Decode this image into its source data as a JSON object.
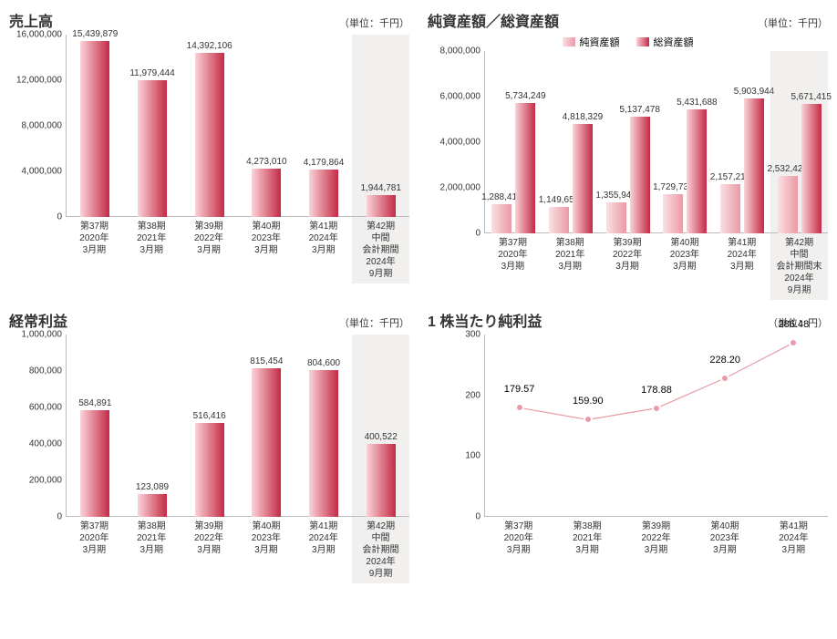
{
  "sales": {
    "title": "売上高",
    "unit": "（単位：千円）",
    "type": "bar",
    "ylim": [
      0,
      16000000
    ],
    "yticks": [
      0,
      4000000,
      8000000,
      12000000,
      16000000
    ],
    "ytick_labels": [
      "0",
      "4,000,000",
      "8,000,000",
      "12,000,000",
      "16,000,000"
    ],
    "bar_gradient": [
      "#fbd3d8",
      "#c42a45"
    ],
    "shaded_bg": "rgba(200,195,190,0.25)",
    "categories": [
      {
        "lines": [
          "第37期",
          "2020年",
          "3月期"
        ]
      },
      {
        "lines": [
          "第38期",
          "2021年",
          "3月期"
        ]
      },
      {
        "lines": [
          "第39期",
          "2022年",
          "3月期"
        ]
      },
      {
        "lines": [
          "第40期",
          "2023年",
          "3月期"
        ]
      },
      {
        "lines": [
          "第41期",
          "2024年",
          "3月期"
        ]
      },
      {
        "lines": [
          "第42期",
          "中間",
          "会計期間",
          "2024年",
          "9月期"
        ],
        "shaded": true
      }
    ],
    "values": [
      15439879,
      11979444,
      14392106,
      4273010,
      4179864,
      1944781
    ],
    "value_labels": [
      "15,439,879",
      "11,979,444",
      "14,392,106",
      "4,273,010",
      "4,179,864",
      "1,944,781"
    ]
  },
  "assets": {
    "title": "純資産額／総資産額",
    "unit": "（単位：千円）",
    "type": "grouped-bar",
    "ylim": [
      0,
      8000000
    ],
    "yticks": [
      0,
      2000000,
      4000000,
      6000000,
      8000000
    ],
    "ytick_labels": [
      "0",
      "2,000,000",
      "4,000,000",
      "6,000,000",
      "8,000,000"
    ],
    "legend": [
      {
        "label": "純資産額",
        "color_gradient": [
          "#fbe0e3",
          "#e99aa6"
        ]
      },
      {
        "label": "総資産額",
        "color_gradient": [
          "#fbd3d8",
          "#c42a45"
        ]
      }
    ],
    "categories": [
      {
        "lines": [
          "第37期",
          "2020年",
          "3月期"
        ]
      },
      {
        "lines": [
          "第38期",
          "2021年",
          "3月期"
        ]
      },
      {
        "lines": [
          "第39期",
          "2022年",
          "3月期"
        ]
      },
      {
        "lines": [
          "第40期",
          "2023年",
          "3月期"
        ]
      },
      {
        "lines": [
          "第41期",
          "2024年",
          "3月期"
        ]
      },
      {
        "lines": [
          "第42期",
          "中間",
          "会計期間末",
          "2024年",
          "9月期"
        ],
        "shaded": true
      }
    ],
    "series": [
      {
        "name": "net",
        "values": [
          1288417,
          1149656,
          1355946,
          1729736,
          2157214,
          2532429
        ],
        "value_labels": [
          "1,288,417",
          "1,149,656",
          "1,355,946",
          "1,729,736",
          "2,157,214",
          "2,532,429"
        ],
        "gradient": [
          "#fbe0e3",
          "#e99aa6"
        ]
      },
      {
        "name": "total",
        "values": [
          5734249,
          4818329,
          5137478,
          5431688,
          5903944,
          5671415
        ],
        "value_labels": [
          "5,734,249",
          "4,818,329",
          "5,137,478",
          "5,431,688",
          "5,903,944",
          "5,671,415"
        ],
        "gradient": [
          "#fbd3d8",
          "#c42a45"
        ]
      }
    ]
  },
  "ordinary": {
    "title": "経常利益",
    "unit": "（単位：千円）",
    "type": "bar",
    "ylim": [
      0,
      1000000
    ],
    "yticks": [
      0,
      200000,
      400000,
      600000,
      800000,
      1000000
    ],
    "ytick_labels": [
      "0",
      "200,000",
      "400,000",
      "600,000",
      "800,000",
      "1,000,000"
    ],
    "bar_gradient": [
      "#fbd3d8",
      "#c42a45"
    ],
    "categories": [
      {
        "lines": [
          "第37期",
          "2020年",
          "3月期"
        ]
      },
      {
        "lines": [
          "第38期",
          "2021年",
          "3月期"
        ]
      },
      {
        "lines": [
          "第39期",
          "2022年",
          "3月期"
        ]
      },
      {
        "lines": [
          "第40期",
          "2023年",
          "3月期"
        ]
      },
      {
        "lines": [
          "第41期",
          "2024年",
          "3月期"
        ]
      },
      {
        "lines": [
          "第42期",
          "中間",
          "会計期間",
          "2024年",
          "9月期"
        ],
        "shaded": true
      }
    ],
    "values": [
      584891,
      123089,
      516416,
      815454,
      804600,
      400522
    ],
    "value_labels": [
      "584,891",
      "123,089",
      "516,416",
      "815,454",
      "804,600",
      "400,522"
    ]
  },
  "eps": {
    "title": "1 株当たり純利益",
    "unit": "（単位：円）",
    "type": "line",
    "ylim": [
      0,
      300
    ],
    "yticks": [
      0,
      100,
      200,
      300
    ],
    "ytick_labels": [
      "0",
      "100",
      "200",
      "300"
    ],
    "line_color": "#e99aa6",
    "marker_color": "#e99aa6",
    "marker_border": "#ffffff",
    "marker_radius": 5,
    "line_width": 3,
    "categories": [
      {
        "lines": [
          "第37期",
          "2020年",
          "3月期"
        ]
      },
      {
        "lines": [
          "第38期",
          "2021年",
          "3月期"
        ]
      },
      {
        "lines": [
          "第39期",
          "2022年",
          "3月期"
        ]
      },
      {
        "lines": [
          "第40期",
          "2023年",
          "3月期"
        ]
      },
      {
        "lines": [
          "第41期",
          "2024年",
          "3月期"
        ]
      }
    ],
    "values": [
      179.57,
      159.9,
      178.88,
      228.2,
      286.48
    ],
    "value_labels": [
      "179.57",
      "159.90",
      "178.88",
      "228.20",
      "286.48"
    ]
  }
}
